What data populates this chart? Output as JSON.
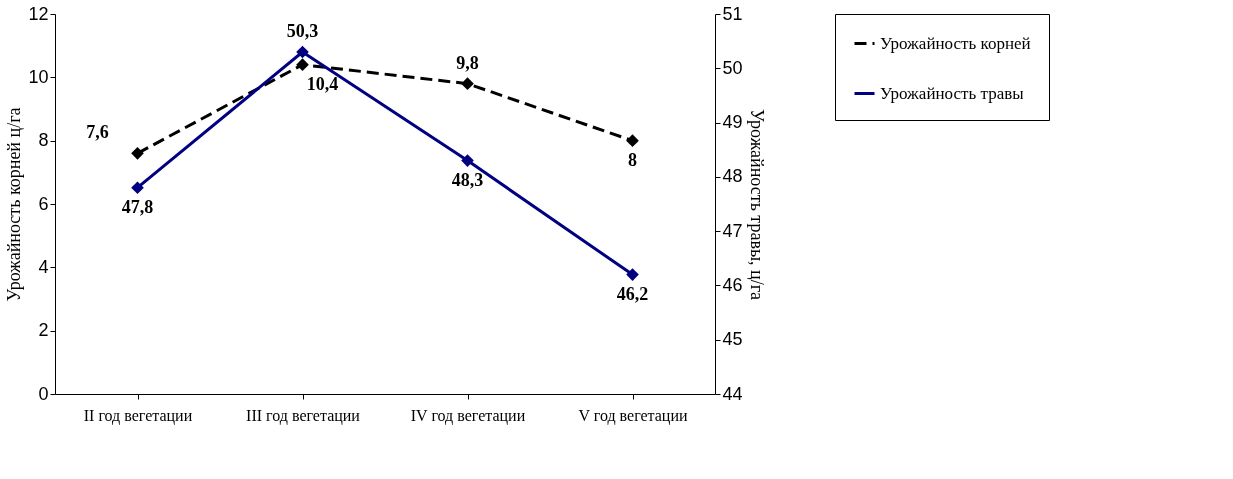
{
  "chart_data": {
    "type": "line",
    "categories": [
      "II год вегетации",
      "III год вегетации",
      "IV год вегетации",
      "V год вегетации"
    ],
    "series": [
      {
        "name": "Урожайность корней",
        "color": "#000000",
        "values": [
          7.6,
          10.4,
          9.8,
          8
        ],
        "value_labels": [
          "7,6",
          "10,4",
          "9,8",
          "8"
        ],
        "axis": "y",
        "line_style": "dashed"
      },
      {
        "name": "Урожайность травы",
        "color": "#000080",
        "values": [
          47.8,
          50.3,
          48.3,
          46.2
        ],
        "value_labels": [
          "47,8",
          "50,3",
          "48,3",
          "46,2"
        ],
        "axis": "y2",
        "line_style": "solid"
      }
    ],
    "ylabel": "Урожайность корней ц/га",
    "y2label": "Урожайность травы, ц/га",
    "ylim": [
      0,
      12
    ],
    "yticks": [
      0,
      2,
      4,
      6,
      8,
      10,
      12
    ],
    "y2lim": [
      44,
      51
    ],
    "y2ticks": [
      44,
      45,
      46,
      47,
      48,
      49,
      50,
      51
    ],
    "marker": "diamond",
    "legend": "right"
  }
}
